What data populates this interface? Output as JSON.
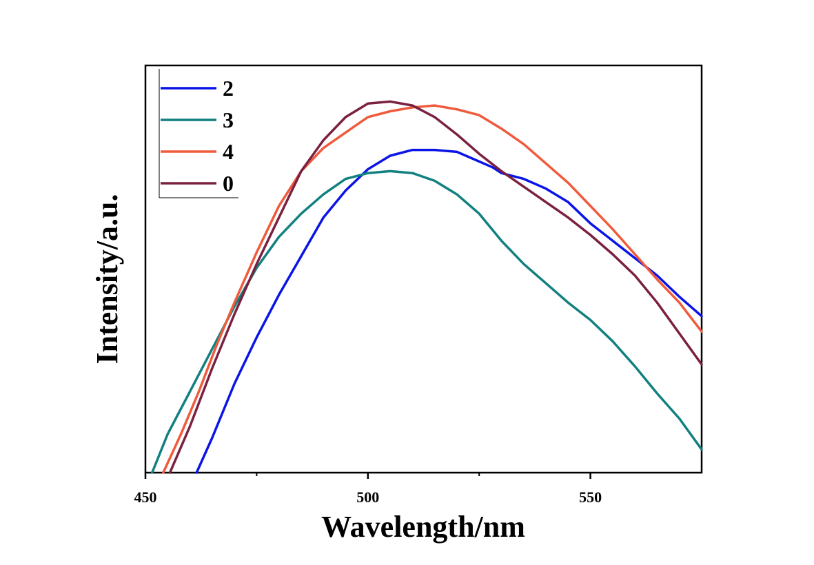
{
  "chart_data": {
    "type": "line",
    "title": "",
    "xlabel": "Wavelength/nm",
    "ylabel": "Intensity/a.u.",
    "xlim": [
      450,
      575
    ],
    "ylim": [
      0,
      1
    ],
    "x_ticks": [
      450,
      500,
      550
    ],
    "x_tick_labels": [
      "450",
      "500",
      "550"
    ],
    "y_tick_labels_shown": false,
    "grid": false,
    "legend_position": "top-left",
    "series": [
      {
        "name": "2",
        "color": "#0a14e6",
        "points": [
          [
            461.5,
            0
          ],
          [
            465,
            0.09
          ],
          [
            470,
            0.23
          ],
          [
            475,
            0.35
          ],
          [
            480,
            0.46
          ],
          [
            485,
            0.56
          ],
          [
            490,
            0.66
          ],
          [
            495,
            0.73
          ],
          [
            500,
            0.785
          ],
          [
            505,
            0.82
          ],
          [
            510,
            0.835
          ],
          [
            515,
            0.835
          ],
          [
            520,
            0.83
          ],
          [
            525,
            0.805
          ],
          [
            528,
            0.79
          ],
          [
            530,
            0.775
          ],
          [
            535,
            0.76
          ],
          [
            540,
            0.735
          ],
          [
            545,
            0.7
          ],
          [
            550,
            0.645
          ],
          [
            555,
            0.6
          ],
          [
            560,
            0.555
          ],
          [
            565,
            0.51
          ],
          [
            570,
            0.455
          ],
          [
            575,
            0.405
          ]
        ]
      },
      {
        "name": "3",
        "color": "#128080",
        "points": [
          [
            451.5,
            0
          ],
          [
            455,
            0.1
          ],
          [
            460,
            0.21
          ],
          [
            465,
            0.32
          ],
          [
            470,
            0.43
          ],
          [
            475,
            0.53
          ],
          [
            480,
            0.61
          ],
          [
            485,
            0.67
          ],
          [
            490,
            0.72
          ],
          [
            495,
            0.76
          ],
          [
            500,
            0.775
          ],
          [
            505,
            0.78
          ],
          [
            510,
            0.775
          ],
          [
            515,
            0.755
          ],
          [
            520,
            0.72
          ],
          [
            525,
            0.67
          ],
          [
            530,
            0.6
          ],
          [
            535,
            0.54
          ],
          [
            540,
            0.49
          ],
          [
            545,
            0.44
          ],
          [
            550,
            0.395
          ],
          [
            555,
            0.34
          ],
          [
            560,
            0.275
          ],
          [
            565,
            0.205
          ],
          [
            570,
            0.14
          ],
          [
            575,
            0.06
          ]
        ]
      },
      {
        "name": "4",
        "color": "#f05a3c",
        "points": [
          [
            454,
            0
          ],
          [
            458,
            0.1
          ],
          [
            462,
            0.21
          ],
          [
            466,
            0.33
          ],
          [
            470,
            0.44
          ],
          [
            475,
            0.57
          ],
          [
            480,
            0.69
          ],
          [
            485,
            0.78
          ],
          [
            490,
            0.84
          ],
          [
            495,
            0.88
          ],
          [
            500,
            0.92
          ],
          [
            505,
            0.935
          ],
          [
            510,
            0.945
          ],
          [
            515,
            0.95
          ],
          [
            520,
            0.94
          ],
          [
            525,
            0.925
          ],
          [
            530,
            0.89
          ],
          [
            535,
            0.85
          ],
          [
            540,
            0.8
          ],
          [
            545,
            0.75
          ],
          [
            550,
            0.69
          ],
          [
            555,
            0.63
          ],
          [
            560,
            0.565
          ],
          [
            565,
            0.5
          ],
          [
            570,
            0.44
          ],
          [
            575,
            0.365
          ]
        ]
      },
      {
        "name": "0",
        "color": "#7a2040",
        "points": [
          [
            455.5,
            0
          ],
          [
            460,
            0.12
          ],
          [
            465,
            0.27
          ],
          [
            470,
            0.41
          ],
          [
            475,
            0.54
          ],
          [
            480,
            0.66
          ],
          [
            485,
            0.78
          ],
          [
            490,
            0.86
          ],
          [
            495,
            0.92
          ],
          [
            500,
            0.955
          ],
          [
            505,
            0.96
          ],
          [
            510,
            0.95
          ],
          [
            515,
            0.92
          ],
          [
            520,
            0.875
          ],
          [
            525,
            0.825
          ],
          [
            530,
            0.78
          ],
          [
            535,
            0.74
          ],
          [
            540,
            0.7
          ],
          [
            545,
            0.66
          ],
          [
            550,
            0.615
          ],
          [
            555,
            0.565
          ],
          [
            560,
            0.51
          ],
          [
            565,
            0.44
          ],
          [
            570,
            0.36
          ],
          [
            575,
            0.28
          ]
        ]
      }
    ]
  }
}
